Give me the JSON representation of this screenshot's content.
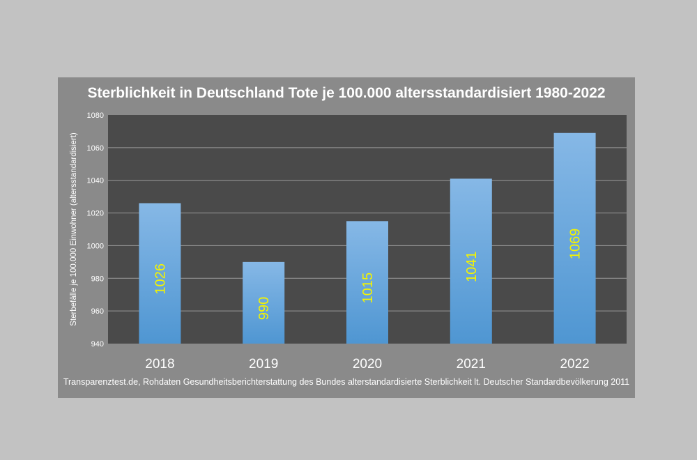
{
  "chart_data": {
    "type": "bar",
    "title": "Sterblichkeit in Deutschland Tote je 100.000 altersstandardisiert 1980-2022",
    "ylabel": "Sterbefälle je 100.000 Einwohner (altersstandardisiert)",
    "xlabel": "",
    "source": "Transparenztest.de, Rohdaten Gesundheitsberichterstattung des Bundes alterstandardisierte Sterblichkeit lt. Deutscher Standardbevölkerung 2011",
    "categories": [
      "2018",
      "2019",
      "2020",
      "2021",
      "2022"
    ],
    "values": [
      1026,
      990,
      1015,
      1041,
      1069
    ],
    "data_labels": [
      "1026",
      "990",
      "1015",
      "1041",
      "1069"
    ],
    "ylim": [
      940,
      1080
    ],
    "yticks": [
      "940",
      "960",
      "980",
      "1000",
      "1020",
      "1040",
      "1060",
      "1080"
    ],
    "grid": true,
    "legend": "none",
    "colors": {
      "page_background": "#c2c2c2",
      "frame_background": "#8a8a8a",
      "plot_background": "#4a4a4a",
      "bar_top": "#86b8e6",
      "bar_bottom": "#4f96d2",
      "data_label": "#f4f400",
      "text": "#ffffff",
      "gridline": "#9a9a9a"
    }
  }
}
